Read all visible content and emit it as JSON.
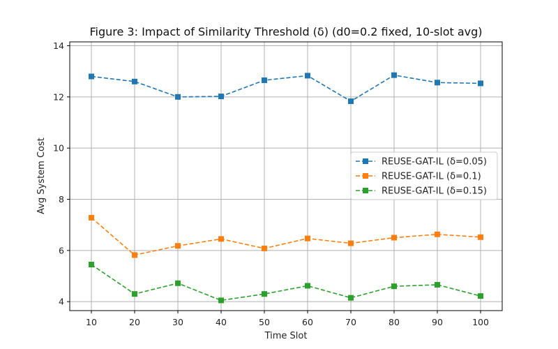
{
  "chart_data": {
    "type": "line",
    "title": "Figure 3: Impact of Similarity Threshold (δ) (d0=0.2 fixed, 10-slot avg)",
    "xlabel": "Time Slot",
    "ylabel": "Avg System Cost",
    "x": [
      10,
      20,
      30,
      40,
      50,
      60,
      70,
      80,
      90,
      100
    ],
    "x_ticks": [
      "10",
      "20",
      "30",
      "40",
      "50",
      "60",
      "70",
      "80",
      "90",
      "100"
    ],
    "y_ticks": [
      "4",
      "6",
      "8",
      "10",
      "12",
      "14"
    ],
    "xlim": [
      5,
      105
    ],
    "ylim": [
      3.65,
      14.15
    ],
    "grid": true,
    "legend_position": "center-right",
    "series": [
      {
        "name": "REUSE-GAT-IL (δ=0.05)",
        "color": "#1f77b4",
        "marker": "square",
        "linestyle": "dashed",
        "values": [
          12.8,
          12.6,
          12.0,
          12.02,
          12.65,
          12.83,
          11.83,
          12.85,
          12.56,
          12.53
        ]
      },
      {
        "name": "REUSE-GAT-IL (δ=0.1)",
        "color": "#ff7f0e",
        "marker": "square",
        "linestyle": "dashed",
        "values": [
          7.28,
          5.82,
          6.18,
          6.45,
          6.08,
          6.47,
          6.28,
          6.5,
          6.63,
          6.52
        ]
      },
      {
        "name": "REUSE-GAT-IL (δ=0.15)",
        "color": "#2ca02c",
        "marker": "square",
        "linestyle": "dashed",
        "values": [
          5.45,
          4.3,
          4.72,
          4.05,
          4.3,
          4.62,
          4.15,
          4.6,
          4.66,
          4.22
        ]
      }
    ]
  }
}
